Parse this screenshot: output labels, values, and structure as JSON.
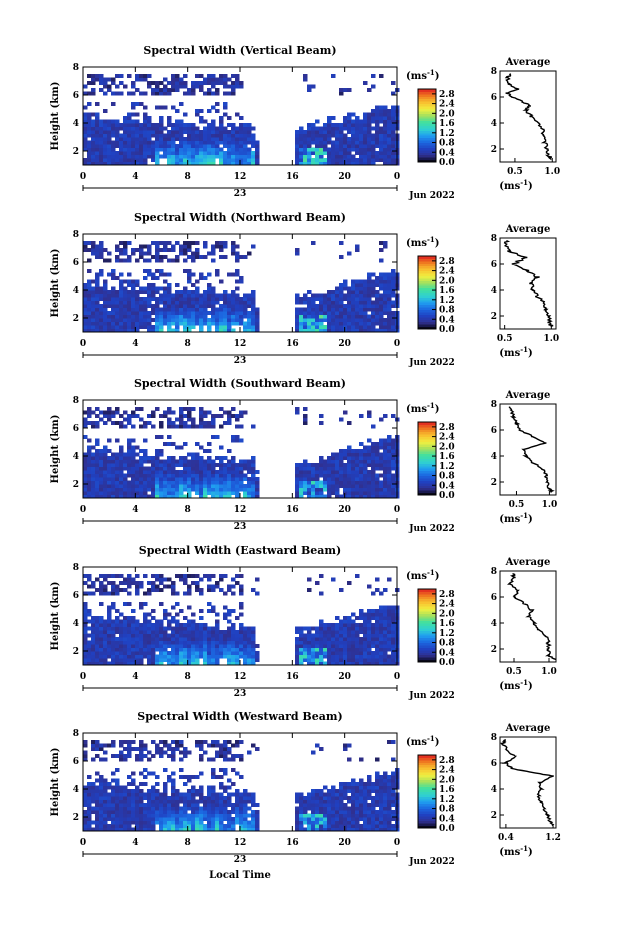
{
  "panels": [
    {
      "title": "Spectral Width (Vertical Beam)",
      "beam": "vertical"
    },
    {
      "title": "Spectral Width (Northward Beam)",
      "beam": "northward"
    },
    {
      "title": "Spectral Width (Southward Beam)",
      "beam": "southward"
    },
    {
      "title": "Spectral Width (Eastward Beam)",
      "beam": "eastward"
    },
    {
      "title": "Spectral Width (Westward Beam)",
      "beam": "westward"
    }
  ],
  "common": {
    "ylabel": "Height (km)",
    "date_label": "Jun 2022",
    "day_label": "23",
    "xlabel_bottom": "Local Time",
    "unit_label": "(ms",
    "unit_exp": "-1",
    "avg_title": "Average"
  },
  "chart_data": {
    "type": "heatmap",
    "x_ticks": [
      "0",
      "4",
      "8",
      "12",
      "16",
      "20",
      "0"
    ],
    "x_range_hours": [
      0,
      24
    ],
    "y_ticks": [
      "2",
      "4",
      "6",
      "8"
    ],
    "y_range_km": [
      1,
      8
    ],
    "colorbar_ticks": [
      "0.0",
      "0.4",
      "0.8",
      "1.2",
      "1.6",
      "2.0",
      "2.4",
      "2.8"
    ],
    "colorbar_range": [
      0.0,
      3.0
    ],
    "colormap_stops": [
      "#000000",
      "#303090",
      "#2040c0",
      "#1c66e0",
      "#20a0f0",
      "#30d0d0",
      "#40e0a0",
      "#a0e060",
      "#f0f040",
      "#f8c030",
      "#f08020",
      "#e02020"
    ],
    "data_gap_hours": [
      13.2,
      16.2
    ],
    "average_profiles": [
      {
        "beam": "vertical",
        "x_ticks": [
          "0.5",
          "1.0"
        ],
        "x_range": [
          0.3,
          1.05
        ],
        "height_km": [
          1.2,
          1.5,
          2,
          2.5,
          3,
          3.5,
          4,
          4.5,
          5,
          5.3,
          5.6,
          6,
          6.3,
          6.6,
          7,
          7.5,
          7.8
        ],
        "value": [
          1.0,
          0.95,
          0.93,
          0.9,
          0.88,
          0.87,
          0.82,
          0.72,
          0.65,
          0.7,
          0.62,
          0.45,
          0.4,
          0.55,
          0.42,
          0.4,
          0.45
        ]
      },
      {
        "beam": "northward",
        "x_ticks": [
          "0.5",
          "1.0"
        ],
        "x_range": [
          0.45,
          1.05
        ],
        "height_km": [
          1.2,
          1.5,
          2,
          2.5,
          3,
          3.5,
          4,
          4.5,
          5,
          5.5,
          6,
          6.5,
          7,
          7.5,
          7.8
        ],
        "value": [
          1.0,
          0.98,
          0.97,
          0.95,
          0.92,
          0.85,
          0.8,
          0.78,
          0.85,
          0.75,
          0.6,
          0.72,
          0.55,
          0.5,
          0.52
        ]
      },
      {
        "beam": "southward",
        "x_ticks": [
          "0.5",
          "1.0"
        ],
        "x_range": [
          0.25,
          1.1
        ],
        "height_km": [
          1.2,
          1.5,
          2,
          2.5,
          3,
          3.5,
          4,
          4.5,
          5,
          5.5,
          6,
          6.5,
          7,
          7.5,
          7.8
        ],
        "value": [
          1.05,
          1.0,
          0.98,
          0.95,
          0.9,
          0.75,
          0.65,
          0.62,
          0.95,
          0.75,
          0.55,
          0.5,
          0.45,
          0.42,
          0.4
        ]
      },
      {
        "beam": "eastward",
        "x_ticks": [
          "0.5",
          "1.0"
        ],
        "x_range": [
          0.3,
          1.1
        ],
        "height_km": [
          1.2,
          1.5,
          2,
          2.5,
          3,
          3.5,
          4,
          4.5,
          5,
          5.5,
          6,
          6.5,
          7,
          7.5,
          7.8
        ],
        "value": [
          1.1,
          1.0,
          0.98,
          1.0,
          0.95,
          0.85,
          0.78,
          0.72,
          0.75,
          0.65,
          0.5,
          0.55,
          0.45,
          0.5,
          0.48
        ]
      },
      {
        "beam": "westward",
        "x_ticks": [
          "0.4",
          "1.2"
        ],
        "x_range": [
          0.3,
          1.25
        ],
        "height_km": [
          1.2,
          1.5,
          2,
          2.5,
          3,
          3.5,
          4,
          4.5,
          5,
          5.3,
          5.6,
          6,
          6.5,
          7,
          7.5,
          7.8
        ],
        "value": [
          1.2,
          1.15,
          1.1,
          1.05,
          1.0,
          0.95,
          1.0,
          0.98,
          1.2,
          0.8,
          0.5,
          0.4,
          0.55,
          0.42,
          0.35,
          0.38
        ]
      }
    ]
  }
}
